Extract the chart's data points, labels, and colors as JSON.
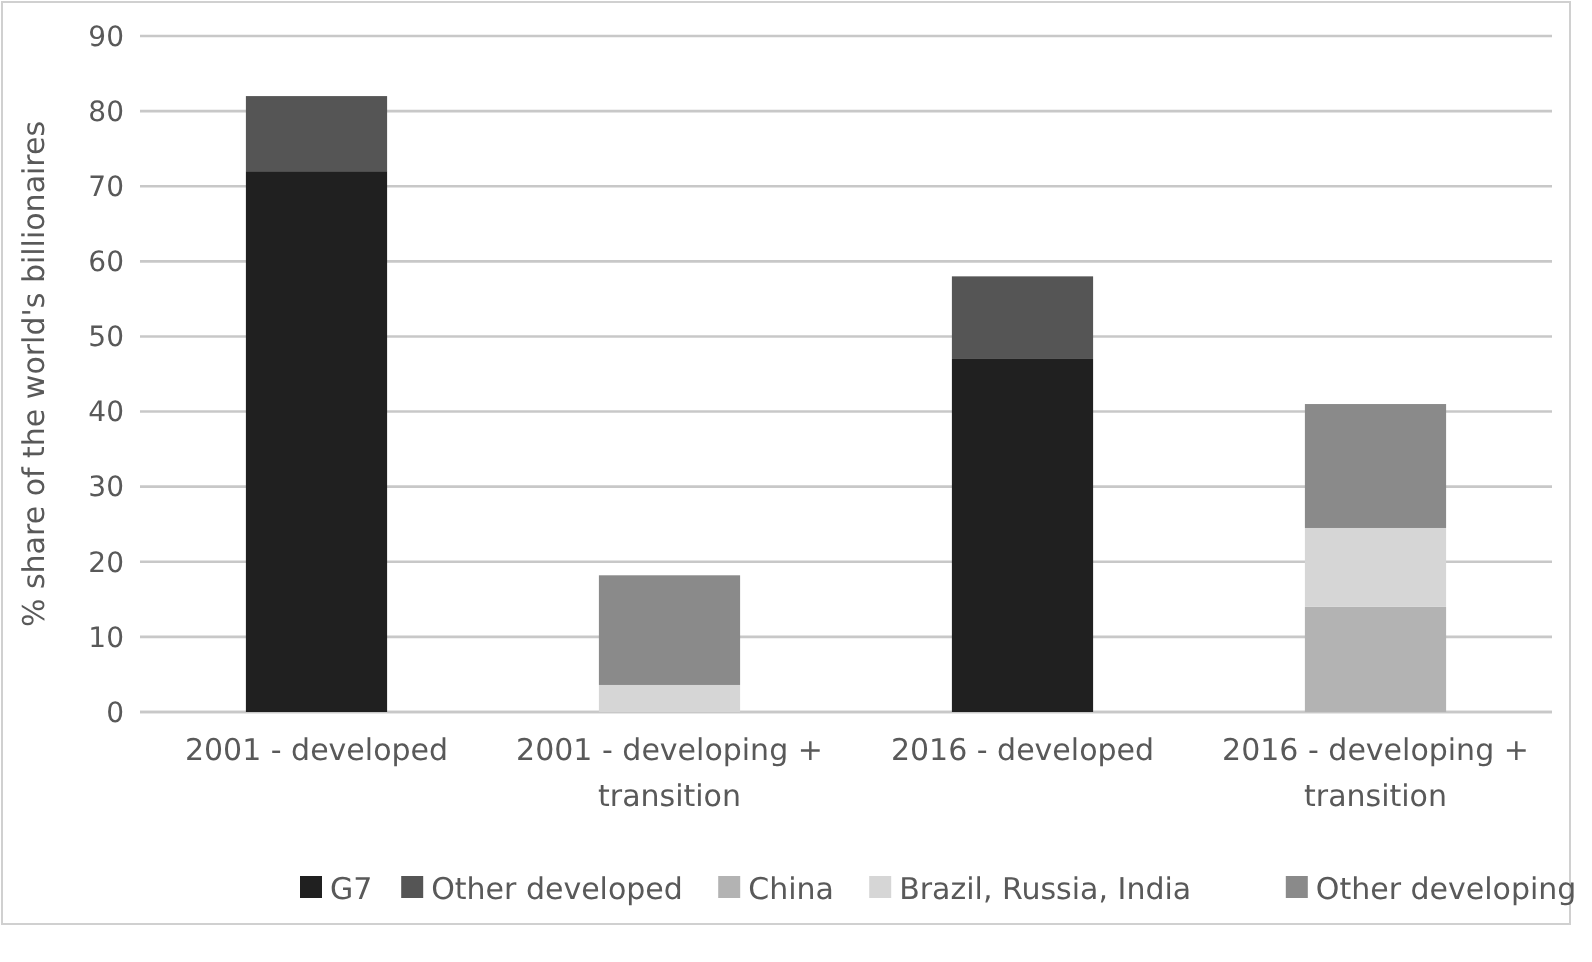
{
  "chart_data": {
    "type": "bar",
    "stacked": true,
    "ylabel": "% share of the world's billionaires",
    "categories": [
      "2001 - developed",
      "2001 - developing + transition",
      "2016 - developed",
      "2016 - developing + transition"
    ],
    "series": [
      {
        "name": "G7",
        "color": "#202020",
        "values": [
          72,
          null,
          47,
          null
        ]
      },
      {
        "name": "Other developed",
        "color": "#555555",
        "values": [
          10,
          null,
          11,
          null
        ]
      },
      {
        "name": "China",
        "color": "#b3b3b3",
        "values": [
          null,
          null,
          null,
          14
        ]
      },
      {
        "name": "Brazil, Russia, India",
        "color": "#d6d6d6",
        "values": [
          null,
          3.6,
          null,
          10.5
        ]
      },
      {
        "name": "Other developing",
        "color": "#8a8a8a",
        "values": [
          null,
          14.6,
          null,
          16.5
        ]
      }
    ],
    "ylim": [
      0,
      90
    ],
    "yticks": [
      0,
      10,
      20,
      30,
      40,
      50,
      60,
      70,
      80,
      90
    ],
    "grid": "y",
    "legend": "bottom"
  }
}
